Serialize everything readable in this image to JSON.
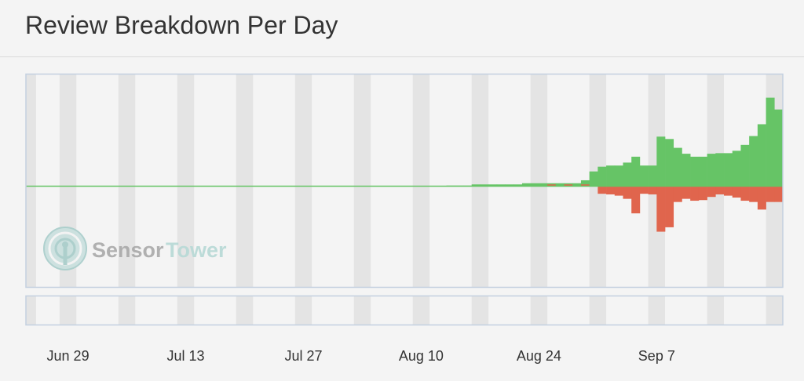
{
  "header": {
    "title": "Review Breakdown Per Day"
  },
  "watermark": {
    "brand_part1": "Sensor",
    "brand_part2": "Tower"
  },
  "chart_data": {
    "type": "bar",
    "subtype": "diverging stacked bar (positive vs negative reviews per day)",
    "x_start": "Jun 25",
    "x_end": "Sep 16",
    "x_tick_labels": [
      "Jun 29",
      "Jul 13",
      "Jul 27",
      "Aug 10",
      "Aug 24",
      "Sep 7"
    ],
    "series": [
      {
        "color": "#66c466",
        "values": [
          0,
          0,
          0,
          0,
          0,
          0,
          0,
          0,
          0,
          0,
          0,
          0,
          0,
          0,
          0,
          0,
          0,
          0,
          0,
          0,
          0,
          0,
          0,
          0,
          0,
          0,
          0,
          0,
          0,
          0,
          0,
          0,
          0,
          0,
          0,
          0,
          0,
          0,
          0,
          0,
          0,
          0,
          0,
          0,
          0,
          0,
          0,
          0,
          0,
          0,
          0.1,
          0.1,
          0.1,
          0.3,
          0.3,
          0.3,
          0.3,
          0.3,
          0.3,
          0.5,
          0.5,
          0.5,
          0.5,
          0.5,
          0.5,
          0.5,
          1,
          2.5,
          3.3,
          3.5,
          3.5,
          4,
          5,
          3.5,
          3.5,
          8.4,
          8,
          6.5,
          5.5,
          5,
          5,
          5.5,
          5.6,
          5.6,
          6,
          7,
          8.5,
          10.5,
          15,
          13
        ]
      },
      {
        "color": "#e0654d",
        "values": [
          0,
          0,
          0,
          0,
          0,
          0,
          0,
          0,
          0,
          0,
          0,
          0,
          0,
          0,
          0,
          0,
          0,
          0,
          0,
          0,
          0,
          0,
          0,
          0,
          0,
          0,
          0,
          0,
          0,
          0,
          0,
          0,
          0,
          0,
          0,
          0,
          0,
          0,
          0,
          0,
          0,
          0,
          0,
          0,
          0,
          0,
          0,
          0,
          0,
          0,
          0,
          0,
          0,
          0,
          0,
          0,
          0,
          0,
          0,
          0,
          0,
          0,
          0.3,
          0,
          0.3,
          0,
          0.3,
          0,
          -1.2,
          -1.3,
          -1.5,
          -2,
          -4.3,
          -1.2,
          -1.3,
          -7.2,
          -6.5,
          -2.5,
          -2,
          -2.3,
          -2.2,
          -1.7,
          -1.3,
          -1.5,
          -1.8,
          -2.3,
          -2.5,
          -3.7,
          -2.5,
          -2.5
        ]
      }
    ],
    "ylim": [
      -16,
      19
    ],
    "grid": "alternating vertical bands",
    "legend": "none"
  }
}
